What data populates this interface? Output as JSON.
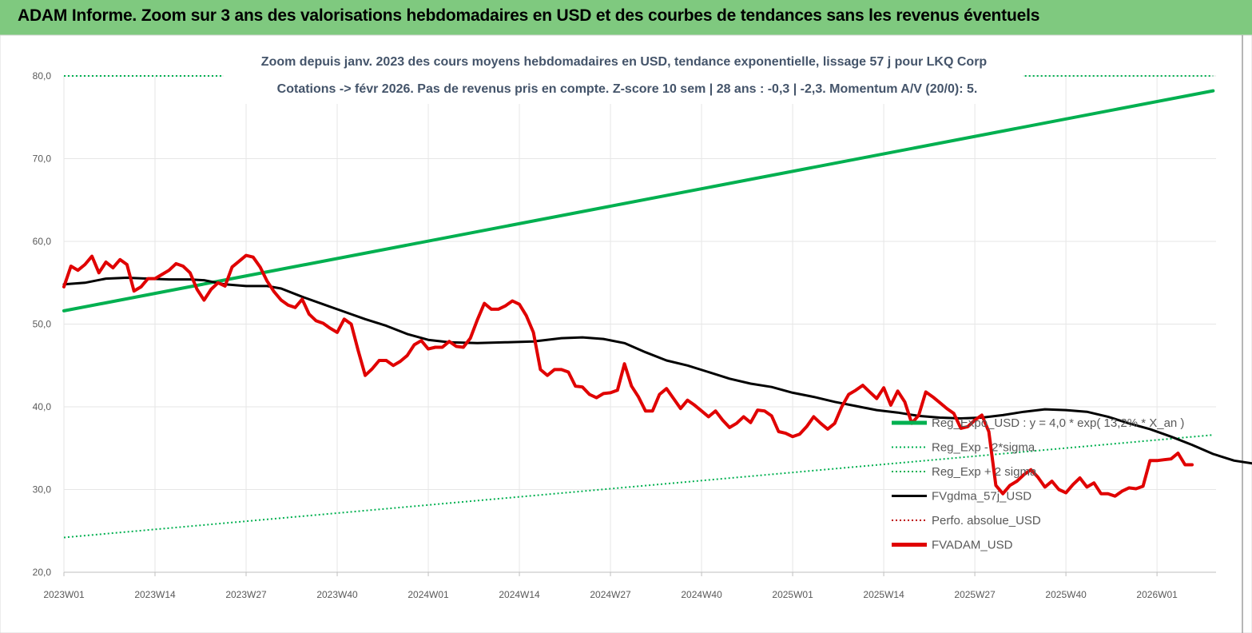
{
  "banner": {
    "title": "ADAM Informe. Zoom sur 3 ans des valorisations hebdomadaires en USD et des courbes de tendances sans les revenus éventuels"
  },
  "colors": {
    "banner_bg": "#7fc97f",
    "trend": "#00b050",
    "band": "#00b050",
    "smooth": "#000000",
    "perf": "#c00000",
    "price": "#e00000"
  },
  "chart_data": {
    "type": "line",
    "title": "",
    "subtitle_lines": [
      "Zoom depuis janv. 2023 des cours moyens hebdomadaires en USD, tendance exponentielle, lissage 57 j pour LKQ Corp",
      "Cotations -> févr 2026.  Pas de revenus pris en compte. Z-score 10 sem | 28 ans : -0,3 | -2,3. Momentum A/V (20/0): 5."
    ],
    "xlabel": "",
    "ylabel": "",
    "x_tick_labels": [
      "2023W01",
      "2023W14",
      "2023W27",
      "2023W40",
      "2024W01",
      "2024W14",
      "2024W27",
      "2024W40",
      "2025W01",
      "2025W14",
      "2025W27",
      "2025W40",
      "2026W01"
    ],
    "y_tick_labels": [
      "20,0",
      "30,0",
      "40,0",
      "50,0",
      "60,0",
      "70,0",
      "80,0"
    ],
    "y_ticks": [
      20,
      30,
      40,
      50,
      60,
      70,
      80
    ],
    "ylim": [
      20,
      80
    ],
    "x_range_weeks": [
      0,
      164
    ],
    "grid": "vertical",
    "legend_position": "right",
    "series": [
      {
        "name": "Reg_Expo_USD : y = 4,0 * exp( 13,2% *  X_an )",
        "style": "thick-solid",
        "color": "#00b050",
        "points": [
          [
            0,
            51.6
          ],
          [
            164,
            78.2
          ]
        ]
      },
      {
        "name": "Reg_Exp - 2*sigma",
        "style": "dotted",
        "color": "#00b050",
        "points": [
          [
            0,
            24.2
          ],
          [
            164,
            36.6
          ]
        ]
      },
      {
        "name": "Reg_Exp + 2 sigma",
        "style": "dotted",
        "color": "#00b050",
        "points": [
          [
            0,
            80
          ],
          [
            23,
            80
          ]
        ],
        "points_2": [
          [
            136,
            80
          ],
          [
            164,
            80
          ]
        ]
      },
      {
        "name": "FVgdma_57j_USD",
        "style": "solid",
        "color": "#000000",
        "points": [
          [
            0,
            54.8
          ],
          [
            3,
            55.0
          ],
          [
            6,
            55.5
          ],
          [
            9,
            55.6
          ],
          [
            12,
            55.5
          ],
          [
            15,
            55.4
          ],
          [
            18,
            55.4
          ],
          [
            20,
            55.3
          ],
          [
            23,
            54.8
          ],
          [
            26,
            54.6
          ],
          [
            29,
            54.6
          ],
          [
            31,
            54.3
          ],
          [
            34,
            53.3
          ],
          [
            37,
            52.4
          ],
          [
            40,
            51.5
          ],
          [
            43,
            50.6
          ],
          [
            46,
            49.8
          ],
          [
            49,
            48.8
          ],
          [
            52,
            48.1
          ],
          [
            55,
            47.8
          ],
          [
            59,
            47.7
          ],
          [
            63,
            47.8
          ],
          [
            67,
            47.9
          ],
          [
            71,
            48.3
          ],
          [
            74,
            48.4
          ],
          [
            77,
            48.2
          ],
          [
            80,
            47.7
          ],
          [
            83,
            46.6
          ],
          [
            86,
            45.6
          ],
          [
            89,
            45.0
          ],
          [
            92,
            44.2
          ],
          [
            95,
            43.4
          ],
          [
            98,
            42.8
          ],
          [
            101,
            42.4
          ],
          [
            104,
            41.7
          ],
          [
            107,
            41.2
          ],
          [
            110,
            40.6
          ],
          [
            113,
            40.1
          ],
          [
            116,
            39.6
          ],
          [
            119,
            39.3
          ],
          [
            122,
            38.9
          ],
          [
            125,
            38.7
          ],
          [
            128,
            38.6
          ],
          [
            131,
            38.7
          ],
          [
            134,
            39.0
          ],
          [
            137,
            39.4
          ],
          [
            140,
            39.7
          ],
          [
            143,
            39.6
          ],
          [
            146,
            39.4
          ],
          [
            149,
            38.8
          ],
          [
            152,
            38.0
          ],
          [
            155,
            37.3
          ],
          [
            158,
            36.4
          ],
          [
            161,
            35.4
          ],
          [
            164,
            34.3
          ],
          [
            167,
            33.5
          ],
          [
            170,
            33.1
          ],
          [
            173,
            32.6
          ],
          [
            176,
            32.1
          ],
          [
            179,
            31.7
          ],
          [
            182,
            31.6
          ],
          [
            185,
            31.4
          ],
          [
            188,
            31.5
          ],
          [
            191,
            31.7
          ],
          [
            194,
            32.2
          ],
          [
            197,
            32.7
          ],
          [
            200,
            32.9
          ],
          [
            203,
            32.9
          ]
        ]
      },
      {
        "name": "Perfo. absolue_USD",
        "style": "dotted",
        "color": "#c00000",
        "points": []
      },
      {
        "name": "FVADAM_USD",
        "style": "thick-solid",
        "color": "#e00000",
        "points": [
          [
            0,
            54.5
          ],
          [
            1,
            57.0
          ],
          [
            2,
            56.5
          ],
          [
            3,
            57.2
          ],
          [
            4,
            58.2
          ],
          [
            5,
            56.2
          ],
          [
            6,
            57.5
          ],
          [
            7,
            56.8
          ],
          [
            8,
            57.8
          ],
          [
            9,
            57.2
          ],
          [
            10,
            54.0
          ],
          [
            11,
            54.5
          ],
          [
            12,
            55.5
          ],
          [
            13,
            55.5
          ],
          [
            14,
            56.0
          ],
          [
            15,
            56.5
          ],
          [
            16,
            57.3
          ],
          [
            17,
            57.0
          ],
          [
            18,
            56.2
          ],
          [
            19,
            54.2
          ],
          [
            20,
            52.9
          ],
          [
            21,
            54.2
          ],
          [
            22,
            55.0
          ],
          [
            23,
            54.6
          ],
          [
            24,
            56.9
          ],
          [
            25,
            57.6
          ],
          [
            26,
            58.3
          ],
          [
            27,
            58.1
          ],
          [
            28,
            56.9
          ],
          [
            29,
            55.2
          ],
          [
            30,
            53.9
          ],
          [
            31,
            52.9
          ],
          [
            32,
            52.3
          ],
          [
            33,
            52.0
          ],
          [
            34,
            53.0
          ],
          [
            35,
            51.2
          ],
          [
            36,
            50.4
          ],
          [
            37,
            50.1
          ],
          [
            38,
            49.5
          ],
          [
            39,
            49.0
          ],
          [
            40,
            50.6
          ],
          [
            41,
            50.0
          ],
          [
            42,
            46.8
          ],
          [
            43,
            43.8
          ],
          [
            44,
            44.6
          ],
          [
            45,
            45.6
          ],
          [
            46,
            45.6
          ],
          [
            47,
            45.0
          ],
          [
            48,
            45.5
          ],
          [
            49,
            46.2
          ],
          [
            50,
            47.5
          ],
          [
            51,
            48.0
          ],
          [
            52,
            47.0
          ],
          [
            53,
            47.2
          ],
          [
            54,
            47.2
          ],
          [
            55,
            47.9
          ],
          [
            56,
            47.3
          ],
          [
            57,
            47.2
          ],
          [
            58,
            48.3
          ],
          [
            59,
            50.5
          ],
          [
            60,
            52.5
          ],
          [
            61,
            51.8
          ],
          [
            62,
            51.8
          ],
          [
            63,
            52.2
          ],
          [
            64,
            52.8
          ],
          [
            65,
            52.4
          ],
          [
            66,
            51.0
          ],
          [
            67,
            49.0
          ],
          [
            68,
            44.5
          ],
          [
            69,
            43.8
          ],
          [
            70,
            44.5
          ],
          [
            71,
            44.5
          ],
          [
            72,
            44.2
          ],
          [
            73,
            42.5
          ],
          [
            74,
            42.4
          ],
          [
            75,
            41.5
          ],
          [
            76,
            41.1
          ],
          [
            77,
            41.6
          ],
          [
            78,
            41.7
          ],
          [
            79,
            42.0
          ],
          [
            80,
            45.2
          ],
          [
            81,
            42.5
          ],
          [
            82,
            41.2
          ],
          [
            83,
            39.5
          ],
          [
            84,
            39.5
          ],
          [
            85,
            41.5
          ],
          [
            86,
            42.2
          ],
          [
            87,
            41.0
          ],
          [
            88,
            39.8
          ],
          [
            89,
            40.8
          ],
          [
            90,
            40.2
          ],
          [
            91,
            39.5
          ],
          [
            92,
            38.8
          ],
          [
            93,
            39.5
          ],
          [
            94,
            38.4
          ],
          [
            95,
            37.5
          ],
          [
            96,
            38.0
          ],
          [
            97,
            38.8
          ],
          [
            98,
            38.1
          ],
          [
            99,
            39.6
          ],
          [
            100,
            39.5
          ],
          [
            101,
            38.9
          ],
          [
            102,
            37.0
          ],
          [
            103,
            36.8
          ],
          [
            104,
            36.4
          ],
          [
            105,
            36.7
          ],
          [
            106,
            37.6
          ],
          [
            107,
            38.8
          ],
          [
            108,
            38.0
          ],
          [
            109,
            37.3
          ],
          [
            110,
            38.0
          ],
          [
            111,
            40.0
          ],
          [
            112,
            41.5
          ],
          [
            113,
            42.0
          ],
          [
            114,
            42.6
          ],
          [
            115,
            41.8
          ],
          [
            116,
            41.0
          ],
          [
            117,
            42.3
          ],
          [
            118,
            40.2
          ],
          [
            119,
            41.9
          ],
          [
            120,
            40.6
          ],
          [
            121,
            38.0
          ],
          [
            122,
            39.0
          ],
          [
            123,
            41.8
          ],
          [
            124,
            41.2
          ],
          [
            125,
            40.5
          ],
          [
            126,
            39.8
          ],
          [
            127,
            39.2
          ],
          [
            128,
            37.4
          ],
          [
            129,
            37.6
          ],
          [
            130,
            38.4
          ],
          [
            131,
            39.0
          ],
          [
            132,
            37.0
          ],
          [
            133,
            30.5
          ],
          [
            134,
            29.5
          ],
          [
            135,
            30.5
          ],
          [
            136,
            31.0
          ],
          [
            137,
            31.8
          ],
          [
            138,
            32.4
          ],
          [
            139,
            31.5
          ],
          [
            140,
            30.3
          ],
          [
            141,
            31.0
          ],
          [
            142,
            30.0
          ],
          [
            143,
            29.6
          ],
          [
            144,
            30.6
          ],
          [
            145,
            31.4
          ],
          [
            146,
            30.3
          ],
          [
            147,
            30.8
          ],
          [
            148,
            29.5
          ],
          [
            149,
            29.5
          ],
          [
            150,
            29.2
          ],
          [
            151,
            29.8
          ],
          [
            152,
            30.2
          ],
          [
            153,
            30.1
          ],
          [
            154,
            30.4
          ],
          [
            155,
            33.5
          ],
          [
            156,
            33.5
          ],
          [
            157,
            33.6
          ],
          [
            158,
            33.7
          ],
          [
            159,
            34.4
          ],
          [
            160,
            33.0
          ],
          [
            161,
            33.0
          ]
        ]
      }
    ]
  }
}
